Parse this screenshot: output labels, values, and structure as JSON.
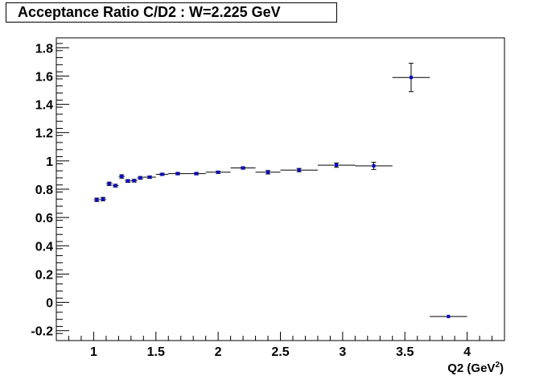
{
  "chart_data": {
    "type": "scatter",
    "title": "Acceptance Ratio C/D2 : W=2.225 GeV",
    "xlabel": "Q2 (GeV",
    "xlabel_sup": "2",
    "xlabel_close": ")",
    "ylabel": "",
    "xlim": [
      0.7,
      4.3
    ],
    "ylim": [
      -0.27,
      1.87
    ],
    "x_ticks": [
      1,
      1.5,
      2,
      2.5,
      3,
      3.5,
      4
    ],
    "x_tick_labels": [
      "1",
      "1.5",
      "2",
      "2.5",
      "3",
      "3.5",
      "4"
    ],
    "y_ticks": [
      -0.2,
      0,
      0.2,
      0.4,
      0.6,
      0.8,
      1,
      1.2,
      1.4,
      1.6,
      1.8
    ],
    "y_tick_labels": [
      "-0.2",
      "0",
      "0.2",
      "0.4",
      "0.6",
      "0.8",
      "1",
      "1.2",
      "1.4",
      "1.6",
      "1.8"
    ],
    "grid": false,
    "marker_color": "#0000cc",
    "series": [
      {
        "points": [
          {
            "x": 1.025,
            "y": 0.725,
            "xerr": 0.025,
            "yerr": 0.012
          },
          {
            "x": 1.075,
            "y": 0.73,
            "xerr": 0.025,
            "yerr": 0.012
          },
          {
            "x": 1.125,
            "y": 0.838,
            "xerr": 0.025,
            "yerr": 0.012
          },
          {
            "x": 1.175,
            "y": 0.825,
            "xerr": 0.025,
            "yerr": 0.01
          },
          {
            "x": 1.225,
            "y": 0.89,
            "xerr": 0.025,
            "yerr": 0.012
          },
          {
            "x": 1.275,
            "y": 0.858,
            "xerr": 0.025,
            "yerr": 0.01
          },
          {
            "x": 1.325,
            "y": 0.86,
            "xerr": 0.025,
            "yerr": 0.01
          },
          {
            "x": 1.375,
            "y": 0.88,
            "xerr": 0.025,
            "yerr": 0.01
          },
          {
            "x": 1.45,
            "y": 0.885,
            "xerr": 0.05,
            "yerr": 0.008
          },
          {
            "x": 1.55,
            "y": 0.905,
            "xerr": 0.05,
            "yerr": 0.008
          },
          {
            "x": 1.675,
            "y": 0.91,
            "xerr": 0.075,
            "yerr": 0.008
          },
          {
            "x": 1.825,
            "y": 0.91,
            "xerr": 0.075,
            "yerr": 0.008
          },
          {
            "x": 2.0,
            "y": 0.92,
            "xerr": 0.1,
            "yerr": 0.008
          },
          {
            "x": 2.2,
            "y": 0.95,
            "xerr": 0.1,
            "yerr": 0.008
          },
          {
            "x": 2.4,
            "y": 0.92,
            "xerr": 0.1,
            "yerr": 0.012
          },
          {
            "x": 2.65,
            "y": 0.935,
            "xerr": 0.15,
            "yerr": 0.012
          },
          {
            "x": 2.95,
            "y": 0.97,
            "xerr": 0.15,
            "yerr": 0.015
          },
          {
            "x": 3.25,
            "y": 0.965,
            "xerr": 0.15,
            "yerr": 0.025
          },
          {
            "x": 3.55,
            "y": 1.59,
            "xerr": 0.15,
            "yerr": 0.1
          },
          {
            "x": 3.85,
            "y": -0.1,
            "xerr": 0.15,
            "yerr": 0.0
          }
        ]
      }
    ]
  }
}
